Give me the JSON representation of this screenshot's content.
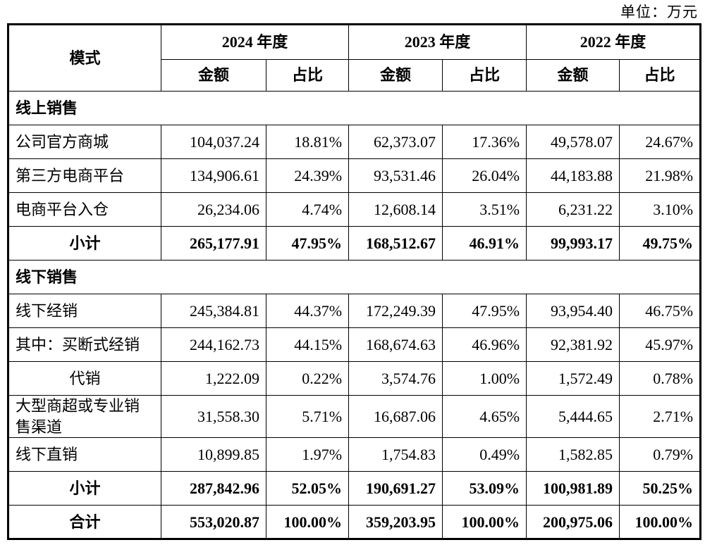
{
  "unit_label": "单位：万元",
  "table": {
    "mode_header": "模式",
    "year_groups": [
      {
        "label": "2024 年度"
      },
      {
        "label": "2023 年度"
      },
      {
        "label": "2022 年度"
      }
    ],
    "sub_headers": {
      "amount": "金额",
      "ratio": "占比"
    },
    "rows": [
      {
        "type": "section",
        "label": "线上销售",
        "values": []
      },
      {
        "type": "data",
        "label": "公司官方商城",
        "values": [
          "104,037.24",
          "18.81%",
          "62,373.07",
          "17.36%",
          "49,578.07",
          "24.67%"
        ]
      },
      {
        "type": "data",
        "label": "第三方电商平台",
        "values": [
          "134,906.61",
          "24.39%",
          "93,531.46",
          "26.04%",
          "44,183.88",
          "21.98%"
        ]
      },
      {
        "type": "data",
        "label": "电商平台入仓",
        "values": [
          "26,234.06",
          "4.74%",
          "12,608.14",
          "3.51%",
          "6,231.22",
          "3.10%"
        ]
      },
      {
        "type": "subtotal",
        "label": "小计",
        "values": [
          "265,177.91",
          "47.95%",
          "168,512.67",
          "46.91%",
          "99,993.17",
          "49.75%"
        ]
      },
      {
        "type": "section",
        "label": "线下销售",
        "values": []
      },
      {
        "type": "data",
        "label": "线下经销",
        "values": [
          "245,384.81",
          "44.37%",
          "172,249.39",
          "47.95%",
          "93,954.40",
          "46.75%"
        ]
      },
      {
        "type": "data",
        "label": "其中：买断式经销",
        "values": [
          "244,162.73",
          "44.15%",
          "168,674.63",
          "46.96%",
          "92,381.92",
          "45.97%"
        ]
      },
      {
        "type": "center",
        "label": "代销",
        "values": [
          "1,222.09",
          "0.22%",
          "3,574.76",
          "1.00%",
          "1,572.49",
          "0.78%"
        ]
      },
      {
        "type": "data",
        "label": "大型商超或专业销售渠道",
        "values": [
          "31,558.30",
          "5.71%",
          "16,687.06",
          "4.65%",
          "5,444.65",
          "2.71%"
        ]
      },
      {
        "type": "data",
        "label": "线下直销",
        "values": [
          "10,899.85",
          "1.97%",
          "1,754.83",
          "0.49%",
          "1,582.85",
          "0.79%"
        ]
      },
      {
        "type": "subtotal",
        "label": "小计",
        "values": [
          "287,842.96",
          "52.05%",
          "190,691.27",
          "53.09%",
          "100,981.89",
          "50.25%"
        ]
      },
      {
        "type": "total",
        "label": "合计",
        "values": [
          "553,020.87",
          "100.00%",
          "359,203.95",
          "100.00%",
          "200,975.06",
          "100.00%"
        ]
      }
    ]
  }
}
